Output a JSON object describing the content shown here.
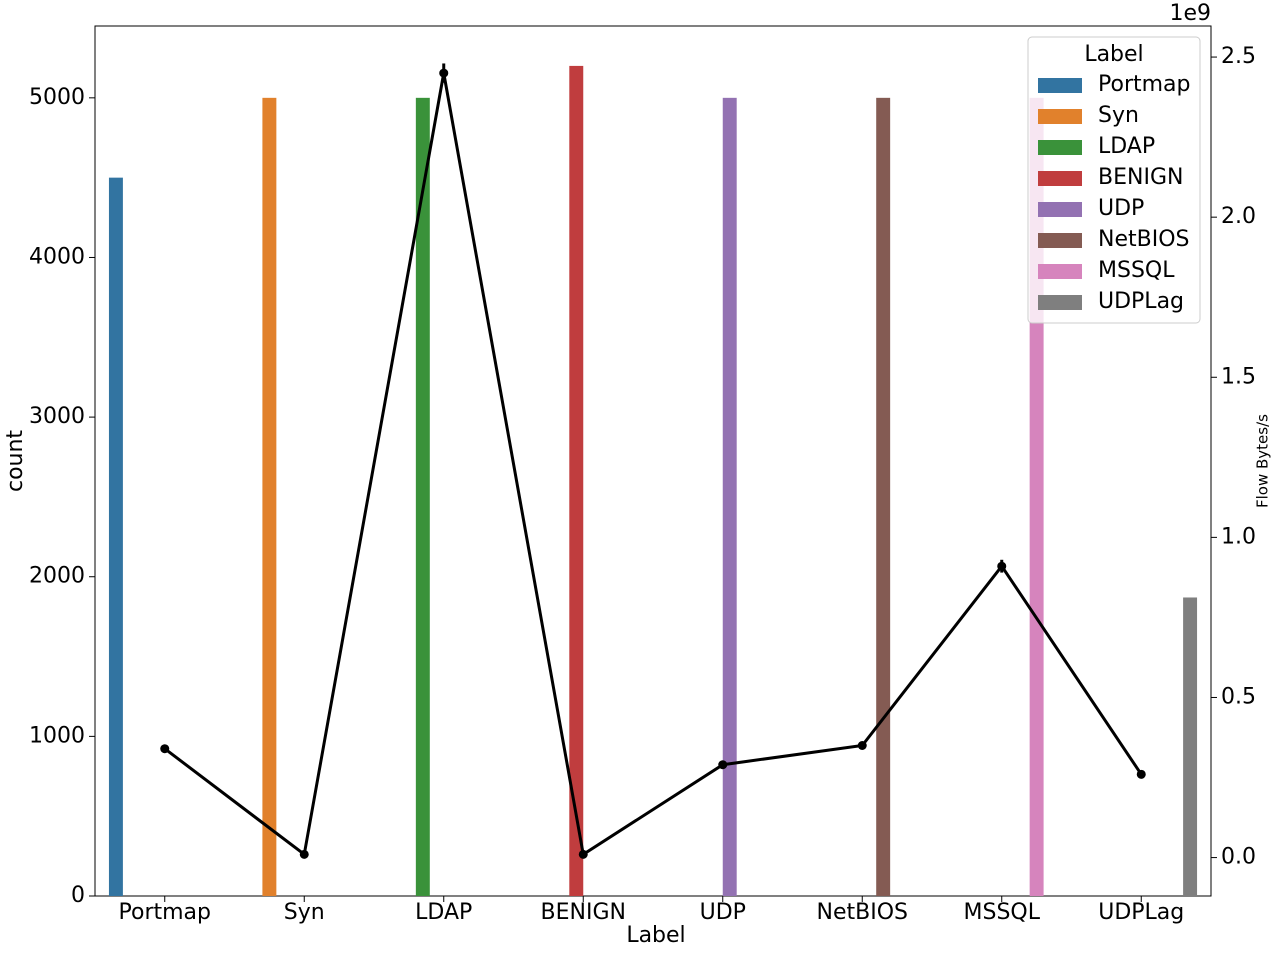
{
  "chart_data": {
    "type": "bar",
    "x_label": "Label",
    "y_label": "count",
    "y2_label": "Flow Bytes/s",
    "y2_offset_label": "1e9",
    "legend_title": "Label",
    "legend_position": "upper right",
    "categories": [
      "Portmap",
      "Syn",
      "LDAP",
      "BENIGN",
      "UDP",
      "NetBIOS",
      "MSSQL",
      "UDPLag"
    ],
    "series": [
      {
        "name": "Portmap",
        "color": "#3274a1",
        "values": [
          4500,
          null,
          null,
          null,
          null,
          null,
          null,
          null
        ]
      },
      {
        "name": "Syn",
        "color": "#e1812c",
        "values": [
          null,
          5000,
          null,
          null,
          null,
          null,
          null,
          null
        ]
      },
      {
        "name": "LDAP",
        "color": "#3a923a",
        "values": [
          null,
          null,
          5000,
          null,
          null,
          null,
          null,
          null
        ]
      },
      {
        "name": "BENIGN",
        "color": "#c03d3e",
        "values": [
          null,
          null,
          null,
          5200,
          null,
          null,
          null,
          null
        ]
      },
      {
        "name": "UDP",
        "color": "#9372b2",
        "values": [
          null,
          null,
          null,
          null,
          5000,
          null,
          null,
          null
        ]
      },
      {
        "name": "NetBIOS",
        "color": "#845b53",
        "values": [
          null,
          null,
          null,
          null,
          null,
          5000,
          null,
          null
        ]
      },
      {
        "name": "MSSQL",
        "color": "#d684bd",
        "values": [
          null,
          null,
          null,
          null,
          null,
          null,
          5000,
          null
        ]
      },
      {
        "name": "UDPLag",
        "color": "#7f7f7f",
        "values": [
          null,
          null,
          null,
          null,
          null,
          null,
          null,
          1870
        ]
      }
    ],
    "line_series": {
      "color": "#000000",
      "axis": "y2",
      "values": [
        0.34,
        0.01,
        2.45,
        0.01,
        0.29,
        0.35,
        0.91,
        0.26
      ],
      "errors": [
        null,
        null,
        0.03,
        null,
        null,
        null,
        0.02,
        null
      ]
    },
    "ylim": [
      0,
      5450
    ],
    "yticks": [
      0,
      1000,
      2000,
      3000,
      4000,
      5000
    ],
    "y2lim": [
      -0.12,
      2.597
    ],
    "y2ticks": [
      {
        "value": 0,
        "label": "0.0"
      },
      0.5,
      {
        "value": 1,
        "label": "1.0"
      },
      1.5,
      {
        "value": 2,
        "label": "2.0"
      },
      2.5
    ],
    "grid": false
  }
}
